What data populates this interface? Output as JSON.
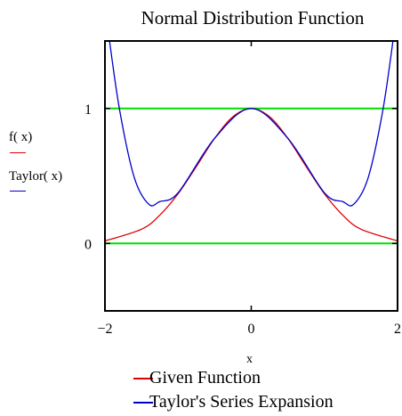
{
  "chart_data": {
    "type": "line",
    "title": "Normal Distribution Function",
    "xlabel": "x",
    "ylabels": [
      "f( x)",
      "Taylor( x)"
    ],
    "xlim": [
      -2,
      2
    ],
    "ylim": [
      -0.5,
      1.5
    ],
    "x_ticks": [
      -2,
      0,
      2
    ],
    "x_tick_labels": [
      "−2",
      "0",
      "2"
    ],
    "y_ticks": [
      0,
      1
    ],
    "y_tick_labels": [
      "0",
      "1"
    ],
    "grid": false,
    "legend_position": "bottom-center",
    "reference_lines": [
      {
        "orientation": "horizontal",
        "y": 0,
        "color": "#00e000"
      },
      {
        "orientation": "horizontal",
        "y": 1,
        "color": "#00e000"
      }
    ],
    "series": [
      {
        "name": "Given Function",
        "color": "#dd0000",
        "x": [
          -2,
          -1.5,
          -1.25,
          -1,
          -0.75,
          -0.5,
          -0.25,
          0,
          0.25,
          0.5,
          0.75,
          1,
          1.25,
          1.5,
          2
        ],
        "y": [
          0.018,
          0.105,
          0.21,
          0.368,
          0.57,
          0.779,
          0.939,
          1,
          0.939,
          0.779,
          0.57,
          0.368,
          0.21,
          0.105,
          0.018
        ]
      },
      {
        "name": "Taylor's Series Expansion",
        "color": "#0000cc",
        "x": [
          -1.95,
          -1.8,
          -1.6,
          -1.4,
          -1.25,
          -1,
          -0.5,
          0,
          0.5,
          1,
          1.25,
          1.4,
          1.6,
          1.8,
          1.95
        ],
        "y": [
          1.55,
          0.99,
          0.49,
          0.29,
          0.31,
          0.375,
          0.779,
          1,
          0.779,
          0.375,
          0.31,
          0.29,
          0.49,
          0.99,
          1.55
        ]
      }
    ]
  },
  "colors": {
    "given": "#dd0000",
    "taylor": "#0000cc",
    "reference": "#00e000",
    "frame": "#000000"
  }
}
